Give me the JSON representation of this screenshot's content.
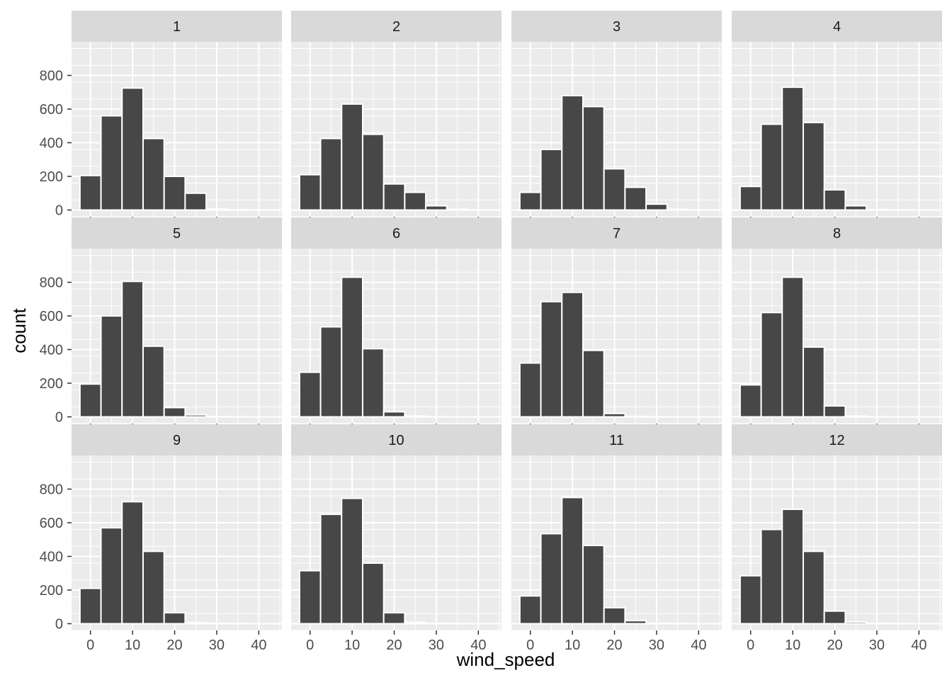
{
  "chart_data": {
    "type": "bar",
    "facet_variable_values": [
      "1",
      "2",
      "3",
      "4",
      "5",
      "6",
      "7",
      "8",
      "9",
      "10",
      "11",
      "12"
    ],
    "bin_width": 5.0,
    "bin_centers": [
      0,
      5,
      10,
      15,
      20,
      25,
      30,
      35,
      40
    ],
    "xlabel": "wind_speed",
    "ylabel": "count",
    "xlim": [
      -4.5,
      45.5
    ],
    "ylim": [
      -40,
      1000
    ],
    "x_ticks": [
      0,
      10,
      20,
      30,
      40
    ],
    "y_ticks": [
      0,
      200,
      400,
      600,
      800
    ],
    "grid": true,
    "colors": {
      "bar_fill": "#474747",
      "bar_stroke": "#ffffff",
      "panel_bg": "#ebebeb",
      "strip_bg": "#d9d9d9",
      "grid": "#ffffff"
    },
    "panels": [
      {
        "label": "1",
        "values": [
          205,
          560,
          725,
          425,
          200,
          100,
          6,
          2,
          1
        ]
      },
      {
        "label": "2",
        "values": [
          210,
          425,
          630,
          450,
          155,
          105,
          25,
          5,
          1
        ]
      },
      {
        "label": "3",
        "values": [
          105,
          360,
          680,
          615,
          245,
          135,
          35,
          5,
          1
        ]
      },
      {
        "label": "4",
        "values": [
          140,
          510,
          730,
          520,
          120,
          25,
          3,
          1,
          0
        ]
      },
      {
        "label": "5",
        "values": [
          195,
          600,
          805,
          420,
          55,
          12,
          2,
          1,
          0
        ]
      },
      {
        "label": "6",
        "values": [
          265,
          535,
          830,
          405,
          30,
          5,
          1,
          0,
          0
        ]
      },
      {
        "label": "7",
        "values": [
          320,
          685,
          740,
          395,
          20,
          3,
          1,
          0,
          0
        ]
      },
      {
        "label": "8",
        "values": [
          190,
          620,
          830,
          415,
          65,
          5,
          1,
          0,
          0
        ]
      },
      {
        "label": "9",
        "values": [
          210,
          570,
          725,
          430,
          65,
          6,
          2,
          1,
          0
        ]
      },
      {
        "label": "10",
        "values": [
          315,
          650,
          745,
          360,
          65,
          8,
          2,
          1,
          0
        ]
      },
      {
        "label": "11",
        "values": [
          165,
          535,
          750,
          465,
          95,
          18,
          3,
          1,
          0
        ]
      },
      {
        "label": "12",
        "values": [
          285,
          560,
          680,
          430,
          75,
          10,
          2,
          1,
          0
        ]
      }
    ]
  }
}
